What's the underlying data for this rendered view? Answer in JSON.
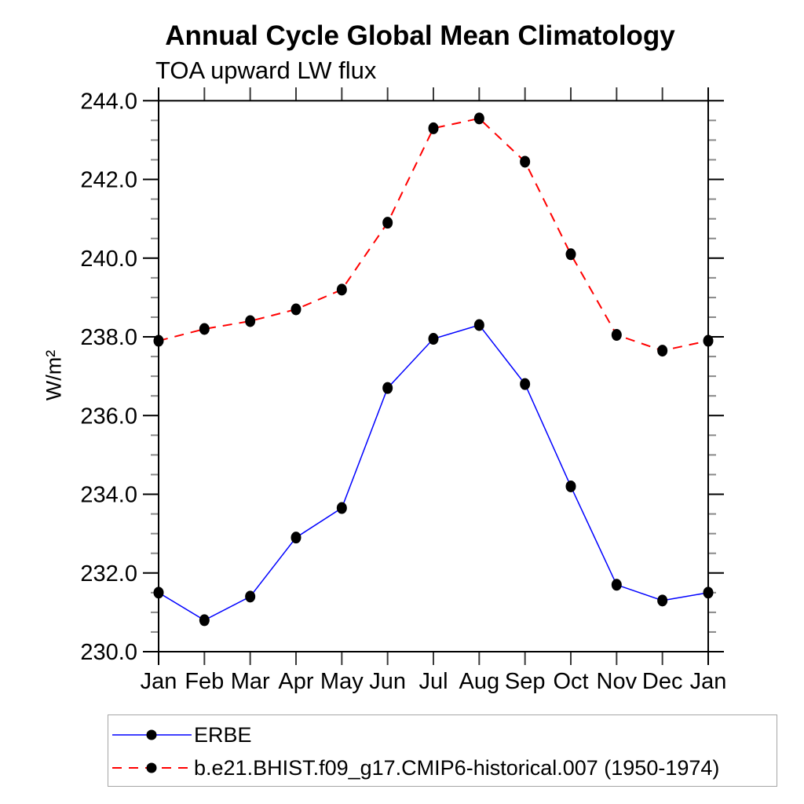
{
  "chart_data": {
    "type": "line",
    "title": "Annual Cycle Global Mean Climatology",
    "subtitle": "TOA upward LW flux",
    "ylabel": "W/m²",
    "xlabel": "",
    "x_tick_labels": [
      "Jan",
      "Feb",
      "Mar",
      "Apr",
      "May",
      "Jun",
      "Jul",
      "Aug",
      "Sep",
      "Oct",
      "Nov",
      "Dec",
      "Jan"
    ],
    "ylim": [
      230.0,
      244.0
    ],
    "y_major_tick_step": 2.0,
    "y_minor_tick_step": 0.5,
    "y_tick_labels": [
      "230.0",
      "232.0",
      "234.0",
      "236.0",
      "238.0",
      "240.0",
      "242.0",
      "244.0"
    ],
    "grid": false,
    "legend_position": "bottom-left boxed",
    "series": [
      {
        "name": "ERBE",
        "line_color": "#0000ff",
        "line_style": "solid",
        "marker": "filled-circle",
        "marker_color": "#000000",
        "values": [
          231.5,
          230.8,
          231.4,
          232.9,
          233.65,
          236.7,
          237.95,
          238.3,
          236.8,
          234.2,
          231.7,
          231.3,
          231.5
        ]
      },
      {
        "name": "b.e21.BHIST.f09_g17.CMIP6-historical.007 (1950-1974)",
        "line_color": "#ff0000",
        "line_style": "dashed",
        "marker": "filled-circle",
        "marker_color": "#000000",
        "values": [
          237.9,
          238.2,
          238.4,
          238.7,
          239.2,
          240.9,
          243.3,
          243.55,
          242.45,
          240.1,
          238.05,
          237.65,
          237.9
        ]
      }
    ]
  },
  "colors": {
    "axis_frame": "#000000",
    "minor_tick": "#888888",
    "month_tick": "#3a3a3a",
    "legend_border": "#a6a6a6"
  }
}
